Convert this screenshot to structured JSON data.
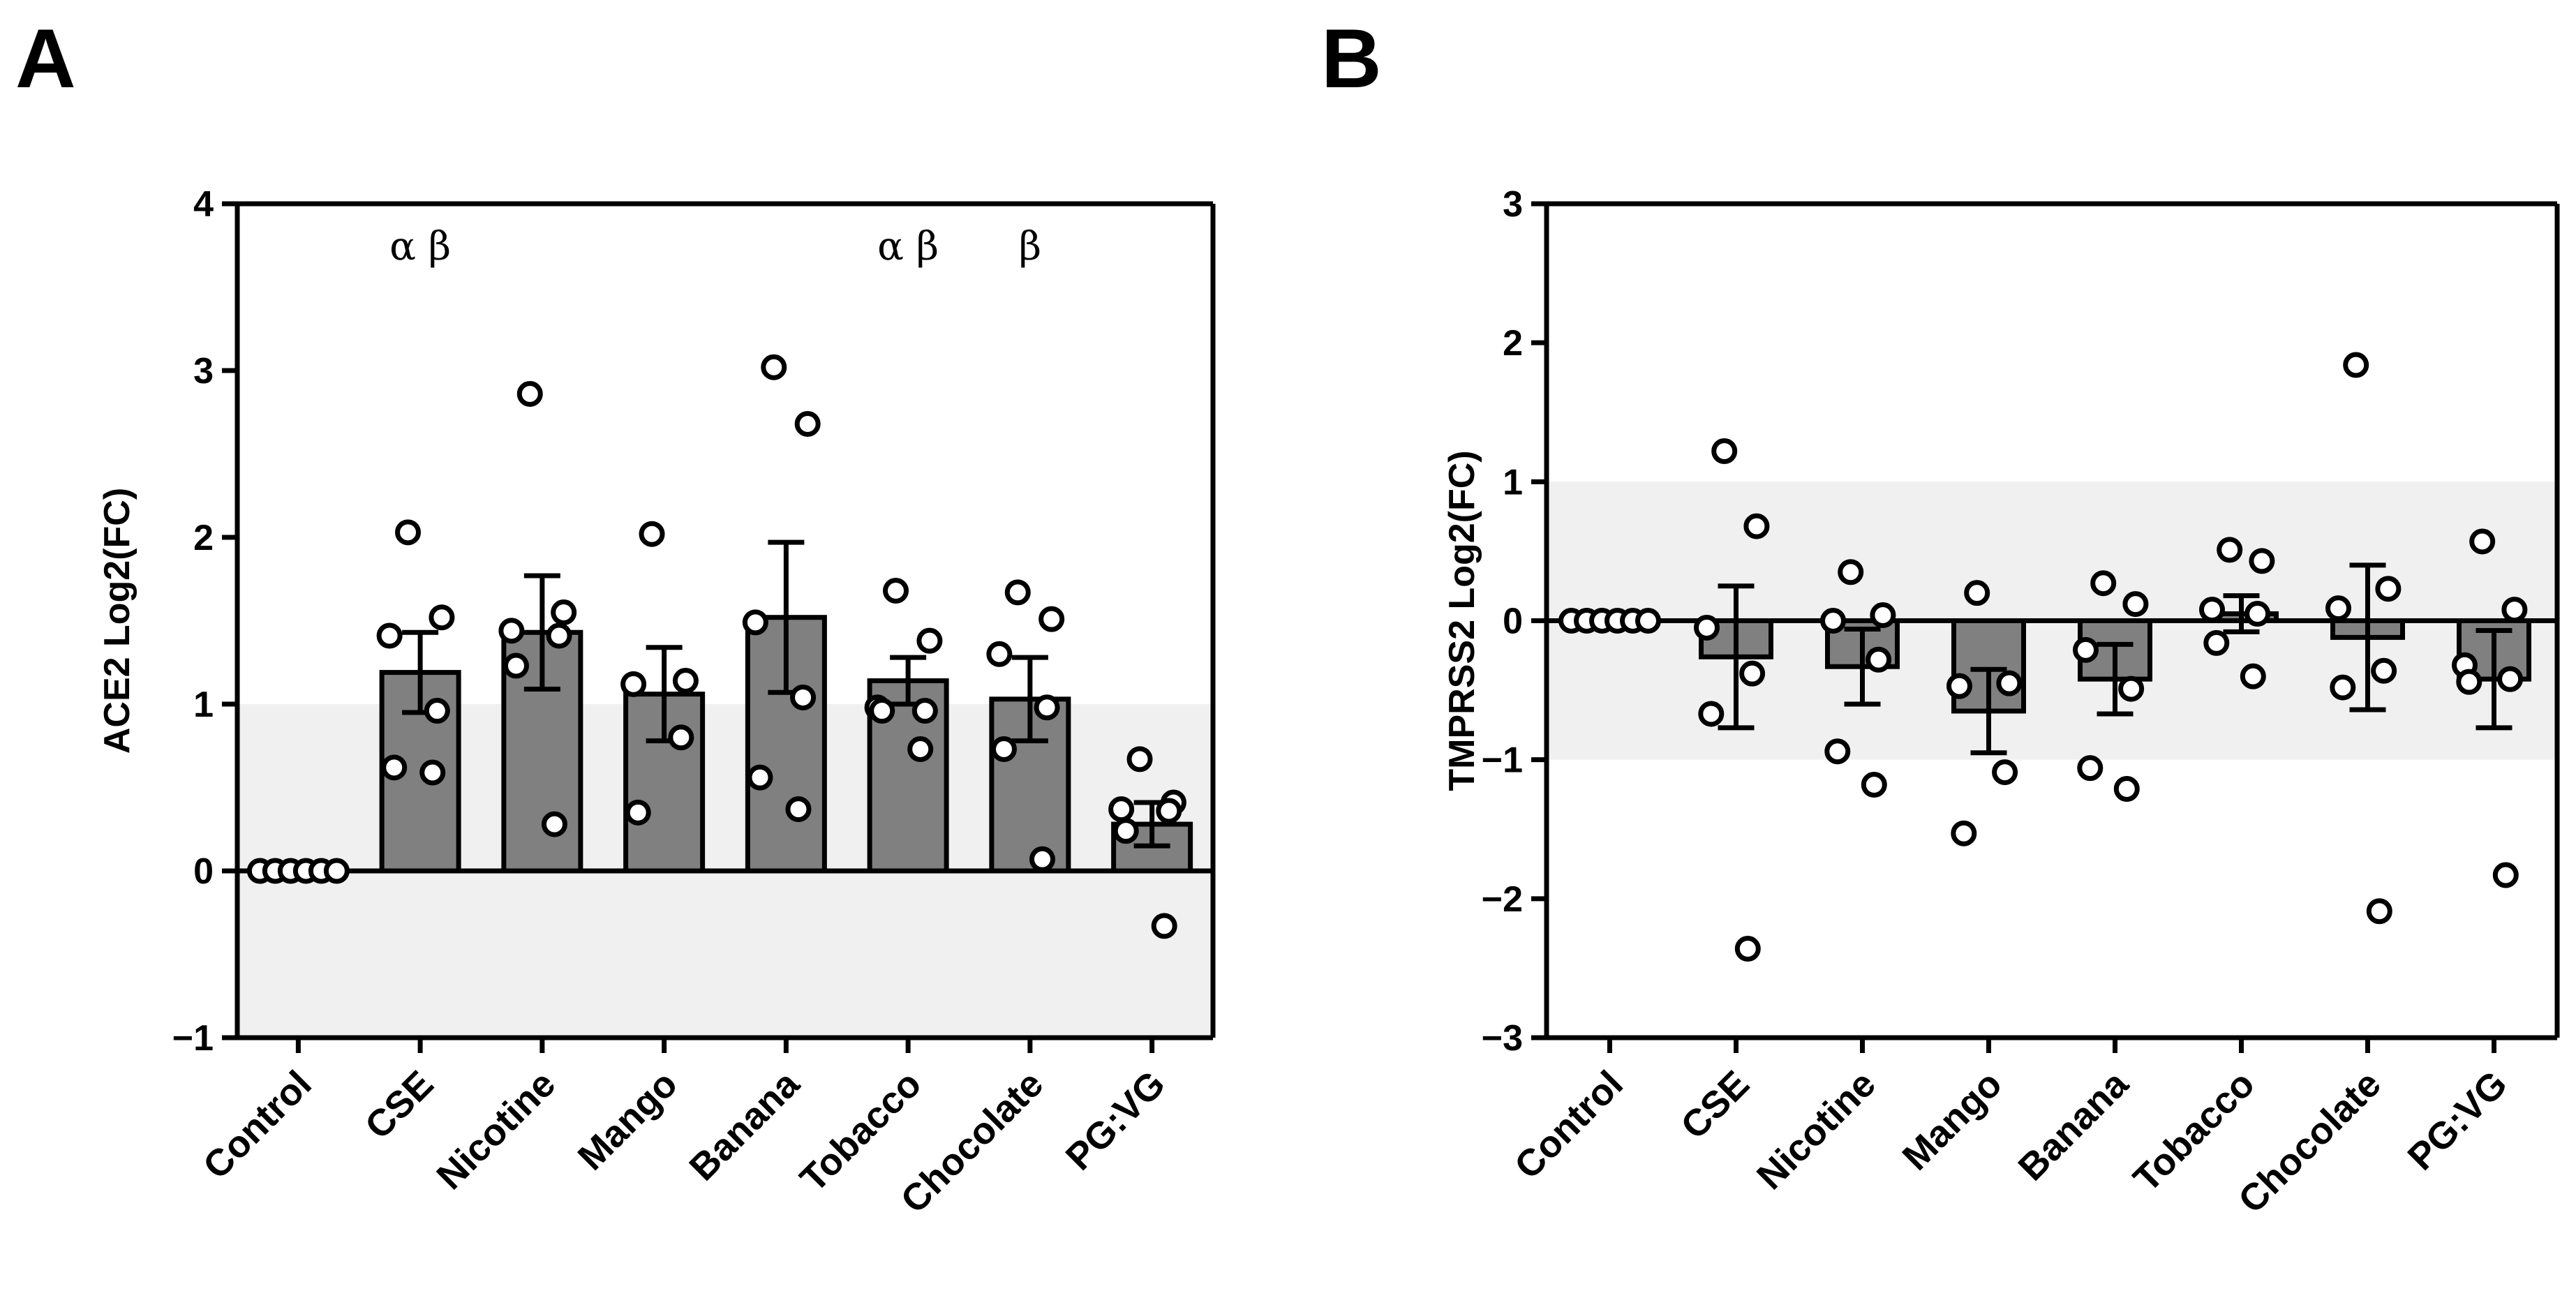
{
  "panel_labels": [
    "A",
    "B"
  ],
  "chart_data": [
    {
      "type": "bar",
      "panel": "A",
      "ylabel": "ACE2 Log2(FC)",
      "ylim": [
        -1,
        4
      ],
      "yticks": [
        -1,
        0,
        1,
        2,
        3,
        4
      ],
      "ytick_labels": [
        "−1",
        "0",
        "1",
        "2",
        "3",
        "4"
      ],
      "categories": [
        "Control",
        "CSE",
        "Nicotine",
        "Mango",
        "Banana",
        "Tobacco",
        "Chocolate",
        "PG:VG"
      ],
      "values": [
        0,
        1.19,
        1.43,
        1.06,
        1.52,
        1.14,
        1.03,
        0.28
      ],
      "sem": [
        0,
        0.24,
        0.34,
        0.28,
        0.45,
        0.14,
        0.25,
        0.13
      ],
      "points": [
        [
          0,
          0,
          0,
          0,
          0,
          0
        ],
        [
          2.03,
          1.52,
          1.41,
          0.96,
          0.62,
          0.59
        ],
        [
          2.86,
          1.55,
          1.44,
          1.41,
          1.23,
          0.28
        ],
        [
          2.02,
          1.14,
          1.12,
          0.8,
          0.35
        ],
        [
          3.02,
          2.68,
          1.49,
          1.04,
          0.56,
          0.37
        ],
        [
          1.68,
          1.38,
          0.98,
          0.96,
          0.96,
          0.73
        ],
        [
          1.67,
          1.51,
          1.3,
          0.98,
          0.73,
          0.07
        ],
        [
          0.67,
          0.41,
          0.37,
          0.36,
          0.24,
          -0.33
        ]
      ],
      "shaded_band": [
        -1,
        1
      ],
      "grid": false,
      "annotations": [
        {
          "category": "CSE",
          "text": "α  β"
        },
        {
          "category": "Tobacco",
          "text": "α  β"
        },
        {
          "category": "Chocolate",
          "text": "β"
        }
      ]
    },
    {
      "type": "bar",
      "panel": "B",
      "ylabel": "TMPRSS2 Log2(FC)",
      "ylim": [
        -3,
        3
      ],
      "yticks": [
        -3,
        -2,
        -1,
        0,
        1,
        2,
        3
      ],
      "ytick_labels": [
        "−3",
        "−2",
        "−1",
        "0",
        "1",
        "2",
        "3"
      ],
      "categories": [
        "Control",
        "CSE",
        "Nicotine",
        "Mango",
        "Banana",
        "Tobacco",
        "Chocolate",
        "PG:VG"
      ],
      "values": [
        0,
        -0.26,
        -0.33,
        -0.65,
        -0.42,
        0.05,
        -0.12,
        -0.42
      ],
      "sem": [
        0,
        0.51,
        0.27,
        0.3,
        0.25,
        0.13,
        0.52,
        0.35
      ],
      "points": [
        [
          0,
          0,
          0,
          0,
          0,
          0
        ],
        [
          1.22,
          0.68,
          -0.05,
          -0.38,
          -0.67,
          -2.36
        ],
        [
          0.35,
          0.04,
          0.0,
          -0.28,
          -0.94,
          -1.18
        ],
        [
          0.2,
          -0.45,
          -0.47,
          -1.09,
          -1.53
        ],
        [
          0.27,
          0.12,
          -0.21,
          -0.49,
          -1.06,
          -1.21
        ],
        [
          0.51,
          0.43,
          0.08,
          0.05,
          -0.16,
          -0.4
        ],
        [
          1.84,
          0.23,
          0.09,
          -0.36,
          -0.48,
          -2.09
        ],
        [
          0.57,
          0.08,
          -0.32,
          -0.42,
          -0.44,
          -1.83
        ]
      ],
      "shaded_band": [
        -1,
        1
      ],
      "grid": false
    }
  ]
}
